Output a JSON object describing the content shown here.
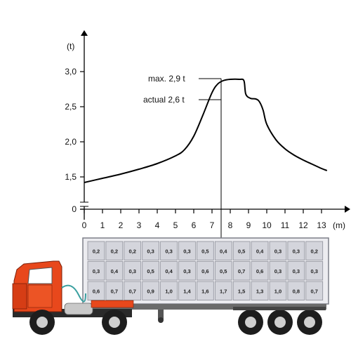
{
  "chart_data": {
    "type": "line",
    "title": "",
    "ylabel": "(t)",
    "xlabel": "(m)",
    "xlim": [
      0,
      14
    ],
    "ylim": [
      1.2,
      3.3
    ],
    "y_axis_break": true,
    "y_ticks": [
      "0",
      "1,5",
      "2,0",
      "2,5",
      "3,0"
    ],
    "x_ticks": [
      "0",
      "1",
      "2",
      "3",
      "4",
      "5",
      "6",
      "7",
      "8",
      "9",
      "10",
      "11",
      "12",
      "13"
    ],
    "series": [
      {
        "x": [
          0,
          1,
          2,
          3,
          4,
          5,
          5.5,
          6,
          6.5,
          7,
          7.3,
          7.6,
          8,
          8.5,
          8.75,
          8.85,
          9.1,
          9.4,
          9.6,
          9.8,
          10,
          10.5,
          11,
          11.5,
          12,
          12.5,
          13,
          13.3
        ],
        "y": [
          1.42,
          1.48,
          1.54,
          1.61,
          1.69,
          1.8,
          1.89,
          2.08,
          2.38,
          2.7,
          2.82,
          2.87,
          2.89,
          2.89,
          2.87,
          2.68,
          2.62,
          2.61,
          2.57,
          2.45,
          2.25,
          2.03,
          1.9,
          1.81,
          1.74,
          1.68,
          1.62,
          1.59
        ]
      }
    ],
    "annotations": [
      {
        "text": "max. 2,9 t",
        "y": 2.9
      },
      {
        "text": "actual 2,6 t",
        "y": 2.6
      }
    ],
    "marker_x": 7.5
  },
  "load_grid": {
    "rows": [
      [
        "0,2",
        "0,2",
        "0,2",
        "0,3",
        "0,3",
        "0,3",
        "0,5",
        "0,4",
        "0,5",
        "0,4",
        "0,3",
        "0,3",
        "0,2"
      ],
      [
        "0,3",
        "0,4",
        "0,3",
        "0,5",
        "0,4",
        "0,3",
        "0,6",
        "0,5",
        "0,7",
        "0,6",
        "0,3",
        "0,3",
        "0,3"
      ],
      [
        "0,6",
        "0,7",
        "0,7",
        "0,9",
        "1,0",
        "1,4",
        "1,6",
        "1,7",
        "1,5",
        "1,3",
        "1,0",
        "0,8",
        "0,7"
      ]
    ]
  },
  "colors": {
    "cab": "#e8481c",
    "trailer_cell": "#d4d5dc",
    "trailer_frame": "#8d8f99",
    "line": "#000000"
  }
}
